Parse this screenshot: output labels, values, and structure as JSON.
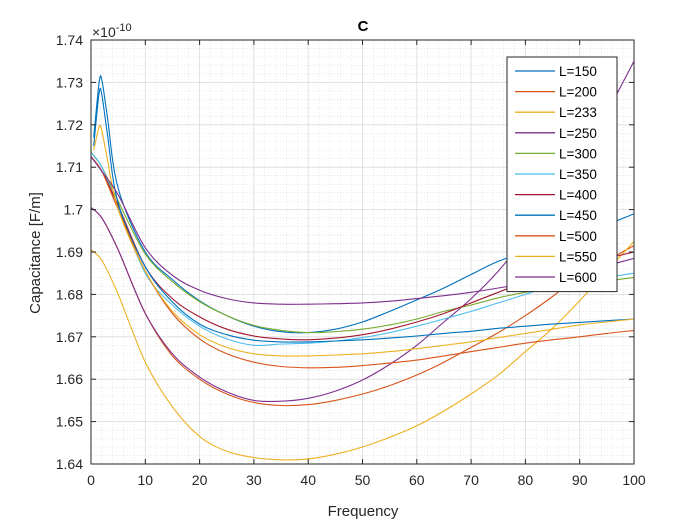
{
  "chart_data": {
    "type": "line",
    "title": "C",
    "xlabel": "Frequency",
    "ylabel": "Capacitance [F/m]",
    "y_exponent_label": "×10",
    "y_exponent_power": "-10",
    "xlim": [
      0,
      100
    ],
    "ylim": [
      1.64,
      1.74
    ],
    "xticks": [
      0,
      10,
      20,
      30,
      40,
      50,
      60,
      70,
      80,
      90,
      100
    ],
    "yticks": [
      1.64,
      1.65,
      1.66,
      1.67,
      1.68,
      1.69,
      1.7,
      1.71,
      1.72,
      1.73,
      1.74
    ],
    "xtick_labels": [
      "0",
      "10",
      "20",
      "30",
      "40",
      "50",
      "60",
      "70",
      "80",
      "90",
      "100"
    ],
    "ytick_labels": [
      "1.64",
      "1.65",
      "1.66",
      "1.67",
      "1.68",
      "1.69",
      "1.7",
      "1.71",
      "1.72",
      "1.73",
      "1.74"
    ],
    "grid": true,
    "minor_grid": true,
    "legend_position": "top-right",
    "series": [
      {
        "name": "L=150",
        "color": "#0072BD",
        "x": [
          0.5,
          1.5,
          2,
          3,
          5,
          10,
          15,
          20,
          25,
          30,
          35,
          40,
          45,
          50,
          55,
          60,
          65,
          70,
          75,
          80,
          85,
          90,
          95,
          100
        ],
        "y": [
          1.717,
          1.73,
          1.7305,
          1.722,
          1.705,
          1.69,
          1.6835,
          1.6785,
          1.675,
          1.6725,
          1.6712,
          1.671,
          1.6718,
          1.6735,
          1.676,
          1.6787,
          1.6815,
          1.6847,
          1.6878,
          1.69,
          1.6925,
          1.6945,
          1.6965,
          1.699
        ]
      },
      {
        "name": "L=200",
        "color": "#D95319",
        "x": [
          0,
          2,
          5,
          10,
          15,
          20,
          25,
          30,
          35,
          40,
          45,
          50,
          55,
          60,
          65,
          70,
          75,
          80,
          85,
          90,
          95,
          100
        ],
        "y": [
          1.7005,
          1.698,
          1.6905,
          1.6755,
          1.6655,
          1.66,
          1.6565,
          1.6545,
          1.6538,
          1.654,
          1.655,
          1.6565,
          1.6585,
          1.661,
          1.664,
          1.6675,
          1.671,
          1.675,
          1.6795,
          1.6845,
          1.688,
          1.6915
        ]
      },
      {
        "name": "L=233",
        "color": "#EDB120",
        "x": [
          0,
          2,
          5,
          10,
          15,
          20,
          25,
          30,
          35,
          40,
          45,
          50,
          55,
          60,
          65,
          70,
          75,
          80,
          85,
          90,
          95,
          100
        ],
        "y": [
          1.6905,
          1.688,
          1.68,
          1.664,
          1.6535,
          1.6465,
          1.643,
          1.6415,
          1.641,
          1.6412,
          1.6423,
          1.644,
          1.6463,
          1.649,
          1.6525,
          1.6565,
          1.661,
          1.6665,
          1.672,
          1.6785,
          1.6855,
          1.6925
        ]
      },
      {
        "name": "L=250",
        "color": "#7E2F8E",
        "x": [
          0,
          2,
          5,
          10,
          15,
          20,
          25,
          30,
          35,
          40,
          45,
          50,
          55,
          60,
          65,
          70,
          75,
          80,
          85,
          90,
          95,
          100
        ],
        "y": [
          1.7005,
          1.698,
          1.6905,
          1.6755,
          1.666,
          1.6605,
          1.657,
          1.655,
          1.6548,
          1.6555,
          1.6572,
          1.6598,
          1.6635,
          1.668,
          1.6735,
          1.679,
          1.6855,
          1.6935,
          1.7025,
          1.7125,
          1.723,
          1.735
        ]
      },
      {
        "name": "L=300",
        "color": "#77AC30",
        "x": [
          0,
          2,
          5,
          10,
          15,
          20,
          25,
          30,
          35,
          40,
          45,
          50,
          55,
          60,
          65,
          70,
          75,
          80,
          85,
          90,
          95,
          100
        ],
        "y": [
          1.7135,
          1.71,
          1.702,
          1.6895,
          1.683,
          1.6783,
          1.675,
          1.6727,
          1.6715,
          1.671,
          1.6712,
          1.6718,
          1.6728,
          1.6742,
          1.676,
          1.6775,
          1.6792,
          1.6805,
          1.6815,
          1.6825,
          1.6832,
          1.684
        ]
      },
      {
        "name": "L=350",
        "color": "#4DBEEE",
        "x": [
          0,
          2,
          5,
          10,
          15,
          20,
          25,
          30,
          35,
          40,
          45,
          50,
          55,
          60,
          65,
          70,
          75,
          80,
          85,
          90,
          95,
          100
        ],
        "y": [
          1.7135,
          1.71,
          1.7005,
          1.685,
          1.6775,
          1.6725,
          1.6695,
          1.668,
          1.6683,
          1.6685,
          1.669,
          1.6698,
          1.671,
          1.6725,
          1.6742,
          1.676,
          1.678,
          1.68,
          1.682,
          1.683,
          1.684,
          1.685
        ]
      },
      {
        "name": "L=400",
        "color": "#A2142F",
        "x": [
          0,
          2,
          5,
          10,
          15,
          20,
          25,
          30,
          35,
          40,
          45,
          50,
          55,
          60,
          65,
          70,
          75,
          80,
          85,
          90,
          95,
          100
        ],
        "y": [
          1.7125,
          1.709,
          1.701,
          1.6865,
          1.679,
          1.6747,
          1.6718,
          1.6702,
          1.6695,
          1.6693,
          1.6697,
          1.6705,
          1.6718,
          1.6735,
          1.6755,
          1.678,
          1.6805,
          1.683,
          1.6855,
          1.687,
          1.6885,
          1.69
        ]
      },
      {
        "name": "L=450",
        "color": "#0072BD",
        "x": [
          0.5,
          1.5,
          2,
          3,
          5,
          10,
          15,
          20,
          25,
          30,
          35,
          40,
          45,
          50,
          55,
          60,
          65,
          70,
          75,
          80,
          85,
          90,
          95,
          100
        ],
        "y": [
          1.715,
          1.7275,
          1.727,
          1.718,
          1.7015,
          1.6865,
          1.6782,
          1.673,
          1.6705,
          1.6692,
          1.6688,
          1.6688,
          1.669,
          1.6693,
          1.6697,
          1.6702,
          1.6708,
          1.6713,
          1.672,
          1.6725,
          1.673,
          1.6734,
          1.6738,
          1.6742
        ]
      },
      {
        "name": "L=500",
        "color": "#D95319",
        "x": [
          0,
          2,
          5,
          10,
          15,
          20,
          25,
          30,
          35,
          40,
          45,
          50,
          55,
          60,
          65,
          70,
          75,
          80,
          85,
          90,
          95,
          100
        ],
        "y": [
          1.7125,
          1.709,
          1.7,
          1.6855,
          1.6755,
          1.6695,
          1.666,
          1.664,
          1.663,
          1.6627,
          1.6628,
          1.6632,
          1.6638,
          1.6645,
          1.6655,
          1.6665,
          1.6675,
          1.6685,
          1.6693,
          1.67,
          1.6708,
          1.6715
        ]
      },
      {
        "name": "L=550",
        "color": "#EDB120",
        "x": [
          0.5,
          1.5,
          2,
          3,
          5,
          10,
          15,
          20,
          25,
          30,
          35,
          40,
          45,
          50,
          55,
          60,
          65,
          70,
          75,
          80,
          85,
          90,
          95,
          100
        ],
        "y": [
          1.714,
          1.7195,
          1.7185,
          1.712,
          1.7,
          1.6855,
          1.676,
          1.6705,
          1.6675,
          1.666,
          1.6655,
          1.6655,
          1.6657,
          1.666,
          1.6665,
          1.6672,
          1.668,
          1.6688,
          1.6698,
          1.6708,
          1.6718,
          1.6728,
          1.6735,
          1.6742
        ]
      },
      {
        "name": "L=600",
        "color": "#7E2F8E",
        "x": [
          0,
          2,
          5,
          10,
          15,
          20,
          25,
          30,
          35,
          40,
          45,
          50,
          55,
          60,
          65,
          70,
          75,
          80,
          85,
          90,
          95,
          100
        ],
        "y": [
          1.7125,
          1.709,
          1.7035,
          1.691,
          1.6845,
          1.681,
          1.679,
          1.678,
          1.6777,
          1.6777,
          1.6778,
          1.678,
          1.6784,
          1.679,
          1.6797,
          1.6805,
          1.6815,
          1.6825,
          1.6838,
          1.6852,
          1.6868,
          1.6885
        ]
      }
    ]
  }
}
